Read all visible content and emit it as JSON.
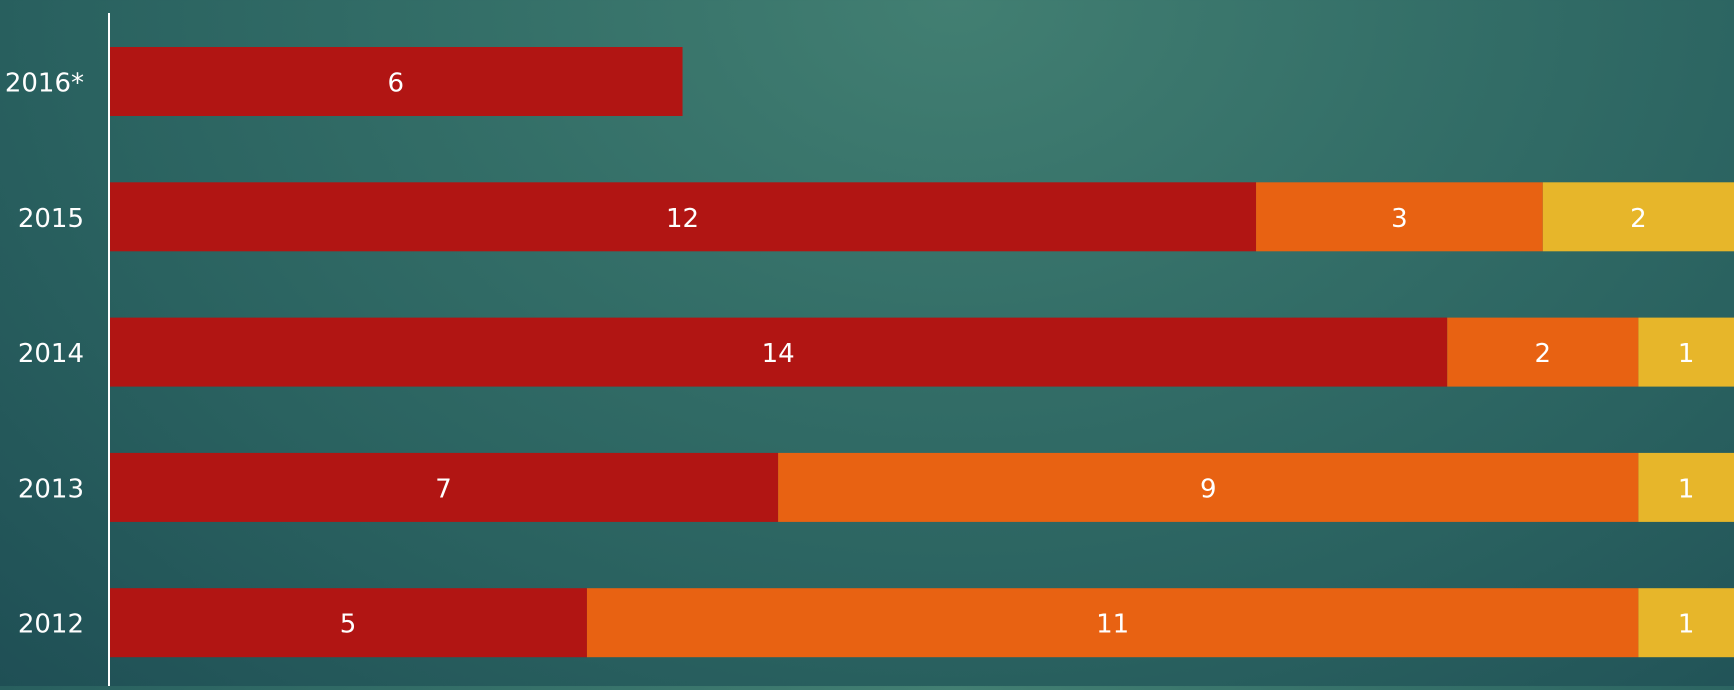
{
  "chart_data": {
    "type": "bar",
    "orientation": "horizontal",
    "stacked": true,
    "categories": [
      "2016*",
      "2015",
      "2014",
      "2013",
      "2012"
    ],
    "series": [
      {
        "values": [
          6,
          12,
          14,
          7,
          5
        ],
        "color": "#b11513"
      },
      {
        "values": [
          0,
          3,
          2,
          9,
          11
        ],
        "color": "#e86212"
      },
      {
        "values": [
          0,
          2,
          1,
          1,
          1
        ],
        "color": "#e7b62a"
      }
    ],
    "xlim": [
      0,
      17
    ],
    "grid": false,
    "legend": "none",
    "title": "",
    "xlabel": "",
    "ylabel": ""
  },
  "colors": {
    "axis_line": "#ffffff",
    "label_text": "#ffffff"
  }
}
